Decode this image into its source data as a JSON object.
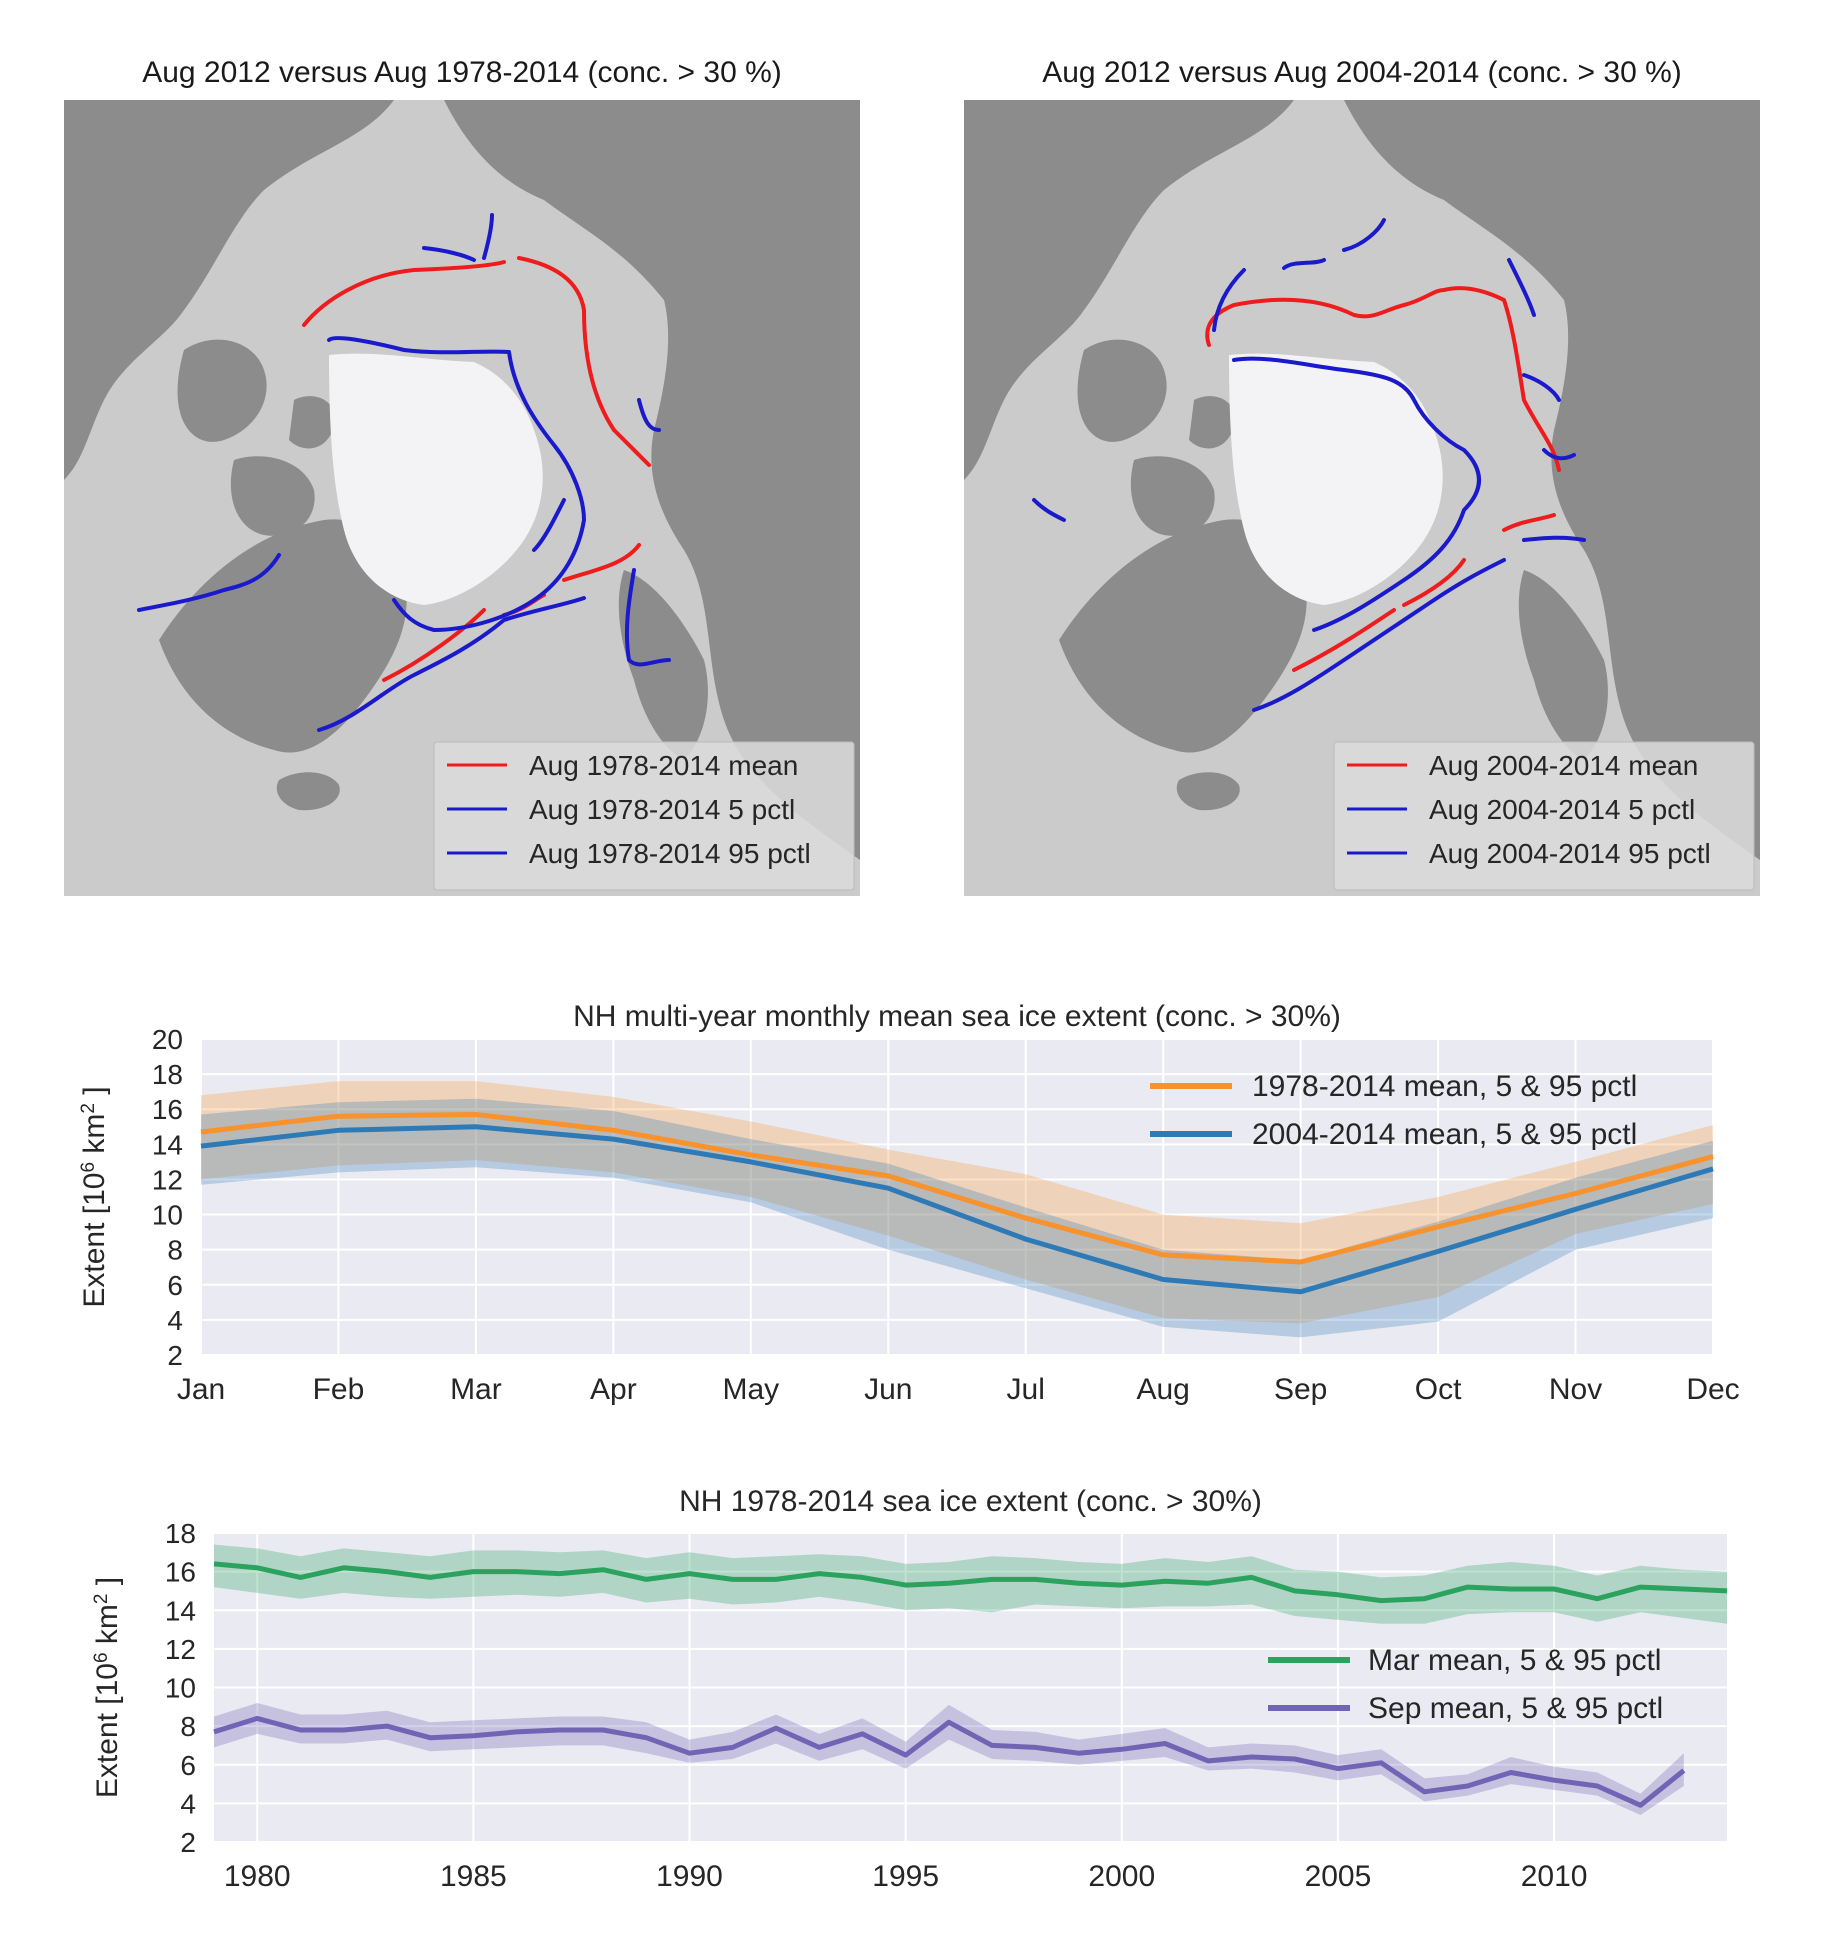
{
  "colors": {
    "ocean": "#cbcbcb",
    "land": "#8c8c8c",
    "ice": "#f3f3f5",
    "mean_line": "#ee1c1c",
    "pctl_line": "#1a1acc",
    "axes_bg": "#eaeaf2",
    "grid": "#ffffff",
    "orange": "#f7922c",
    "blue": "#2e7ab6",
    "green": "#2ca25f",
    "purple": "#7264b4"
  },
  "maps": [
    {
      "title": "Aug 2012 versus Aug 1978-2014 (conc. > 30 %)",
      "legend": [
        "Aug 1978-2014 mean",
        "Aug 1978-2014 5 pctl",
        "Aug 1978-2014 95 pctl"
      ]
    },
    {
      "title": "Aug 2012 versus Aug 2004-2014 (conc. > 30 %)",
      "legend": [
        "Aug 2004-2014 mean",
        "Aug 2004-2014 5 pctl",
        "Aug 2004-2014 95 pctl"
      ]
    }
  ],
  "chart_data": [
    {
      "type": "line",
      "title": "NH multi-year monthly mean sea ice extent (conc. > 30%)",
      "ylabel": "Extent [10^6 km^2]",
      "ylabel_parts": [
        "Extent [10",
        "6",
        "  km",
        "2",
        " ]"
      ],
      "ylim": [
        2,
        20
      ],
      "yticks": [
        2,
        4,
        6,
        8,
        10,
        12,
        14,
        16,
        18,
        20
      ],
      "categories": [
        "Jan",
        "Feb",
        "Mar",
        "Apr",
        "May",
        "Jun",
        "Jul",
        "Aug",
        "Sep",
        "Oct",
        "Nov",
        "Dec"
      ],
      "legend_position": "upper right",
      "series": [
        {
          "name": "1978-2014 mean, 5 & 95 pctl",
          "color": "#f7922c",
          "mean": [
            14.7,
            15.6,
            15.7,
            14.8,
            13.4,
            12.2,
            9.8,
            7.7,
            7.3,
            9.3,
            11.2,
            13.3
          ],
          "p5": [
            12.0,
            12.8,
            13.1,
            12.4,
            11.0,
            8.8,
            6.3,
            4.1,
            3.8,
            5.3,
            8.9,
            10.6
          ],
          "p95": [
            16.8,
            17.6,
            17.6,
            16.7,
            15.3,
            13.7,
            12.3,
            10.0,
            9.5,
            11.0,
            13.0,
            15.1
          ]
        },
        {
          "name": "2004-2014 mean, 5 & 95 pctl",
          "color": "#2e7ab6",
          "mean": [
            13.9,
            14.8,
            15.0,
            14.3,
            13.0,
            11.5,
            8.6,
            6.3,
            5.6,
            7.9,
            10.3,
            12.6
          ],
          "p5": [
            11.7,
            12.4,
            12.7,
            12.1,
            10.7,
            8.0,
            5.8,
            3.6,
            3.0,
            3.9,
            8.0,
            9.8
          ],
          "p95": [
            15.7,
            16.4,
            16.6,
            15.9,
            14.3,
            12.9,
            10.4,
            8.0,
            7.4,
            9.6,
            12.1,
            14.2
          ]
        }
      ]
    },
    {
      "type": "line",
      "title": "NH 1978-2014 sea ice extent (conc. > 30%)",
      "ylabel": "Extent [10^6 km^2]",
      "ylabel_parts": [
        "Extent [10",
        "6",
        "  km",
        "2",
        " ]"
      ],
      "xlim": [
        1979,
        2014
      ],
      "ylim": [
        2,
        18
      ],
      "yticks": [
        2,
        4,
        6,
        8,
        10,
        12,
        14,
        16,
        18
      ],
      "xticks": [
        1980,
        1985,
        1990,
        1995,
        2000,
        2005,
        2010
      ],
      "legend_position": "center right",
      "series": [
        {
          "name": "Mar mean, 5 & 95 pctl",
          "color": "#2ca25f",
          "x": [
            1979,
            1980,
            1981,
            1982,
            1983,
            1984,
            1985,
            1986,
            1987,
            1988,
            1989,
            1990,
            1991,
            1992,
            1993,
            1994,
            1995,
            1996,
            1997,
            1998,
            1999,
            2000,
            2001,
            2002,
            2003,
            2004,
            2005,
            2006,
            2007,
            2008,
            2009,
            2010,
            2011,
            2012,
            2013,
            2014
          ],
          "mean": [
            16.4,
            16.2,
            15.7,
            16.2,
            16.0,
            15.7,
            16.0,
            16.0,
            15.9,
            16.1,
            15.6,
            15.9,
            15.6,
            15.6,
            15.9,
            15.7,
            15.3,
            15.4,
            15.6,
            15.6,
            15.4,
            15.3,
            15.5,
            15.4,
            15.7,
            15.0,
            14.8,
            14.5,
            14.6,
            15.2,
            15.1,
            15.1,
            14.6,
            15.2,
            15.1,
            15.0
          ],
          "p5": [
            15.2,
            14.9,
            14.6,
            14.9,
            14.7,
            14.6,
            14.7,
            14.8,
            14.7,
            14.9,
            14.4,
            14.6,
            14.3,
            14.4,
            14.7,
            14.4,
            14.0,
            14.1,
            13.9,
            14.3,
            14.2,
            14.1,
            14.2,
            14.2,
            14.3,
            13.7,
            13.5,
            13.3,
            13.3,
            13.8,
            13.9,
            13.9,
            13.4,
            13.9,
            13.6,
            13.3
          ],
          "p95": [
            17.4,
            17.2,
            16.8,
            17.2,
            17.0,
            16.8,
            17.1,
            17.1,
            17.0,
            17.1,
            16.7,
            17.0,
            16.7,
            16.8,
            16.9,
            16.8,
            16.4,
            16.5,
            16.8,
            16.7,
            16.5,
            16.4,
            16.7,
            16.5,
            16.8,
            16.1,
            16.0,
            15.7,
            15.8,
            16.3,
            16.5,
            16.3,
            15.8,
            16.3,
            16.1,
            16.0
          ]
        },
        {
          "name": "Sep mean, 5 & 95 pctl",
          "color": "#7264b4",
          "x": [
            1979,
            1980,
            1981,
            1982,
            1983,
            1984,
            1985,
            1986,
            1987,
            1988,
            1989,
            1990,
            1991,
            1992,
            1993,
            1994,
            1995,
            1996,
            1997,
            1998,
            1999,
            2000,
            2001,
            2002,
            2003,
            2004,
            2005,
            2006,
            2007,
            2008,
            2009,
            2010,
            2011,
            2012,
            2013
          ],
          "mean": [
            7.7,
            8.4,
            7.8,
            7.8,
            8.0,
            7.4,
            7.5,
            7.7,
            7.8,
            7.8,
            7.4,
            6.6,
            6.9,
            7.9,
            6.9,
            7.6,
            6.5,
            8.2,
            7.0,
            6.9,
            6.6,
            6.8,
            7.1,
            6.2,
            6.4,
            6.3,
            5.8,
            6.1,
            4.6,
            4.9,
            5.6,
            5.2,
            4.9,
            3.9,
            5.7
          ],
          "p5": [
            6.9,
            7.6,
            7.1,
            7.1,
            7.3,
            6.7,
            6.8,
            6.9,
            7.0,
            7.0,
            6.6,
            6.1,
            6.3,
            7.1,
            6.2,
            6.8,
            5.8,
            7.3,
            6.3,
            6.2,
            6.0,
            6.2,
            6.4,
            5.7,
            5.8,
            5.6,
            5.2,
            5.5,
            4.1,
            4.4,
            5.0,
            4.7,
            4.4,
            3.4,
            4.9
          ],
          "p95": [
            8.5,
            9.2,
            8.6,
            8.6,
            8.8,
            8.2,
            8.3,
            8.4,
            8.5,
            8.5,
            8.2,
            7.3,
            7.7,
            8.6,
            7.6,
            8.4,
            7.2,
            9.1,
            7.8,
            7.7,
            7.3,
            7.6,
            7.9,
            6.9,
            7.1,
            7.0,
            6.5,
            6.8,
            5.3,
            5.5,
            6.4,
            5.9,
            5.6,
            4.5,
            6.6
          ]
        }
      ]
    }
  ]
}
